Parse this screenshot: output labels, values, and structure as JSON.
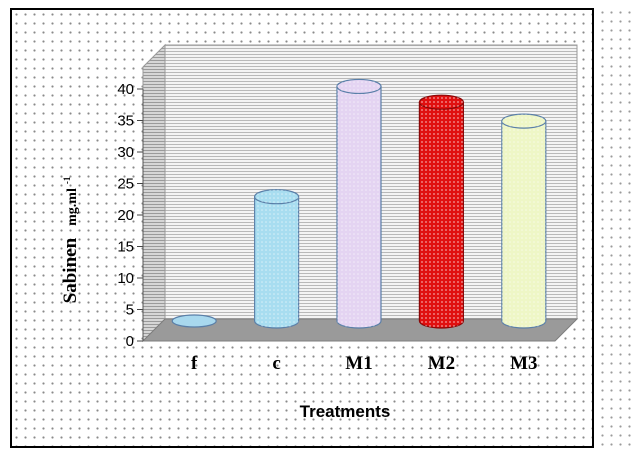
{
  "chart_data": {
    "type": "bar",
    "categories": [
      "f",
      "c",
      "M1",
      "M2",
      "M3"
    ],
    "values": [
      0.5,
      21,
      38.5,
      36,
      33
    ],
    "ylabel": "Sabinen",
    "ylabel_unit": "mg.ml",
    "ylabel_unit_sup": "-1",
    "xlabel": "Treatments",
    "ylim": [
      0,
      40
    ],
    "yticks": [
      "0",
      "5",
      "10",
      "15",
      "20",
      "25",
      "30",
      "35",
      "40"
    ],
    "grid": true,
    "legend": "none",
    "colors": [
      "#a8d8ee",
      "#a8ddf0",
      "#e4d4f2",
      "#e01010",
      "#eef6c6"
    ]
  }
}
